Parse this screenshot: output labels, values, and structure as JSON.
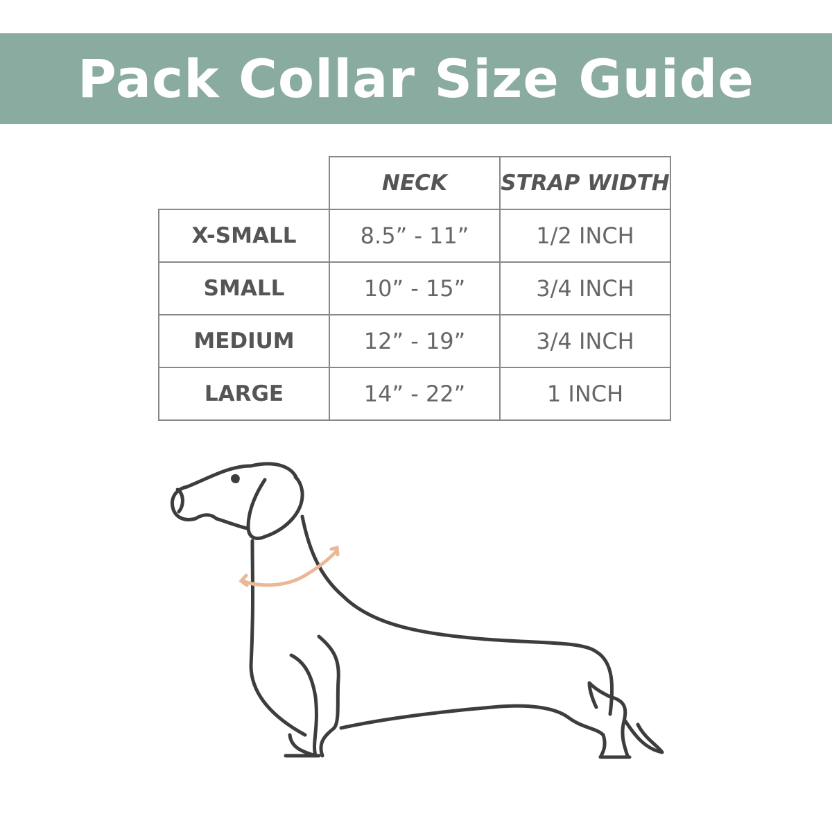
{
  "title": "Pack Collar Size Guide",
  "colors": {
    "banner": "#8aaba0",
    "text": "#555555",
    "measure_arrow": "#eab896",
    "outline": "#3d3d3d"
  },
  "table": {
    "headers": [
      "",
      "NECK",
      "STRAP WIDTH"
    ],
    "rows": [
      {
        "size": "X-SMALL",
        "neck": "8.5” - 11”",
        "strap": "1/2 INCH"
      },
      {
        "size": "SMALL",
        "neck": "10” - 15”",
        "strap": "3/4 INCH"
      },
      {
        "size": "MEDIUM",
        "neck": "12” - 19”",
        "strap": "3/4 INCH"
      },
      {
        "size": "LARGE",
        "neck": "14” - 22”",
        "strap": "1 INCH"
      }
    ]
  },
  "illustration": {
    "subject": "dachshund-outline",
    "measure": "neck-arrow"
  }
}
